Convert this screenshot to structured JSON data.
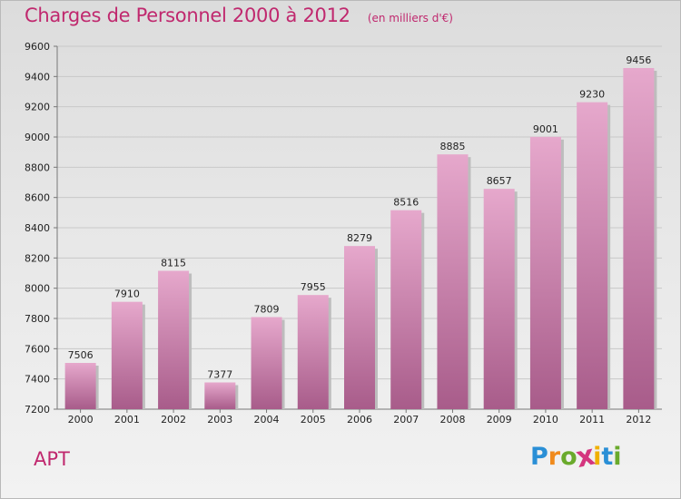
{
  "header": {
    "title": "Charges de Personnel 2000 à 2012",
    "subtitle": "(en milliers d'€)"
  },
  "footer": {
    "location": "APT",
    "brand_letters": [
      "P",
      "r",
      "o",
      "x",
      "i",
      "t",
      "i"
    ],
    "brand_colors": [
      "#2a8fd6",
      "#f08a1c",
      "#6aaa2c",
      "#d4357e",
      "#f0b000",
      "#2a8fd6",
      "#6aaa2c"
    ]
  },
  "colors": {
    "bar_top": "#e6a8cc",
    "bar_bottom": "#a85c8a",
    "bar_shadow": "#bdbdbd",
    "text": "#c0286e"
  },
  "chart_data": {
    "type": "bar",
    "categories": [
      "2000",
      "2001",
      "2002",
      "2003",
      "2004",
      "2005",
      "2006",
      "2007",
      "2008",
      "2009",
      "2010",
      "2011",
      "2012"
    ],
    "values": [
      7506,
      7910,
      8115,
      7377,
      7809,
      7955,
      8279,
      8516,
      8885,
      8657,
      9001,
      9230,
      9456
    ],
    "title": "Charges de Personnel 2000 à 2012",
    "subtitle": "(en milliers d'€)",
    "ylim": [
      7200,
      9600
    ],
    "yticks": [
      7200,
      7400,
      7600,
      7800,
      8000,
      8200,
      8400,
      8600,
      8800,
      9000,
      9200,
      9400,
      9600
    ],
    "grid": true,
    "data_labels": true
  }
}
